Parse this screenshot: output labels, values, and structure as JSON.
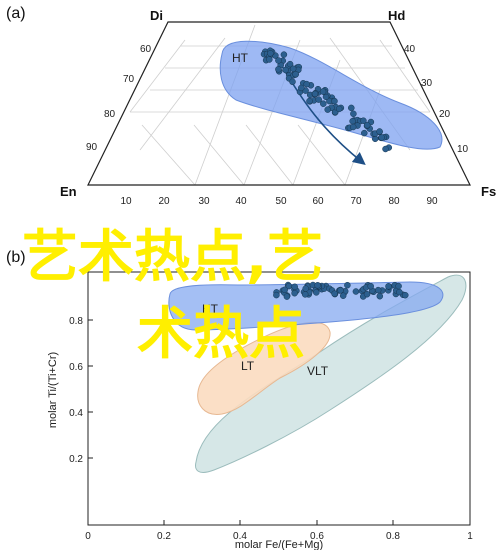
{
  "panel_a": {
    "label": "(a)",
    "vertices": {
      "top_left": "Di",
      "top_right": "Hd",
      "bottom_left": "En",
      "bottom_right": "Fs"
    },
    "left_ticks": [
      "60",
      "70",
      "80",
      "90"
    ],
    "right_ticks": [
      "40",
      "30",
      "20",
      "10"
    ],
    "bottom_ticks": [
      "10",
      "20",
      "30",
      "40",
      "50",
      "60",
      "70",
      "80",
      "90"
    ],
    "field_label": "HT",
    "field_color": "#7ea2f0",
    "point_color": "#2c5f8f"
  },
  "panel_b": {
    "label": "(b)",
    "xlabel": "molar Fe/(Fe+Mg)",
    "ylabel": "molar Ti/(Ti+Cr)",
    "x_ticks": [
      "0",
      "0.2",
      "0.4",
      "0.6",
      "0.8",
      "1"
    ],
    "y_ticks": [
      "0.2",
      "0.4",
      "0.6",
      "0.8"
    ],
    "fields": [
      {
        "label": "HT",
        "color": "#86a9f0"
      },
      {
        "label": "LT",
        "color": "#fbdcc0"
      },
      {
        "label": "VLT",
        "color": "#cfe3e3"
      }
    ]
  },
  "watermark": {
    "line1": "艺术热点,艺",
    "line2": "术热点"
  }
}
